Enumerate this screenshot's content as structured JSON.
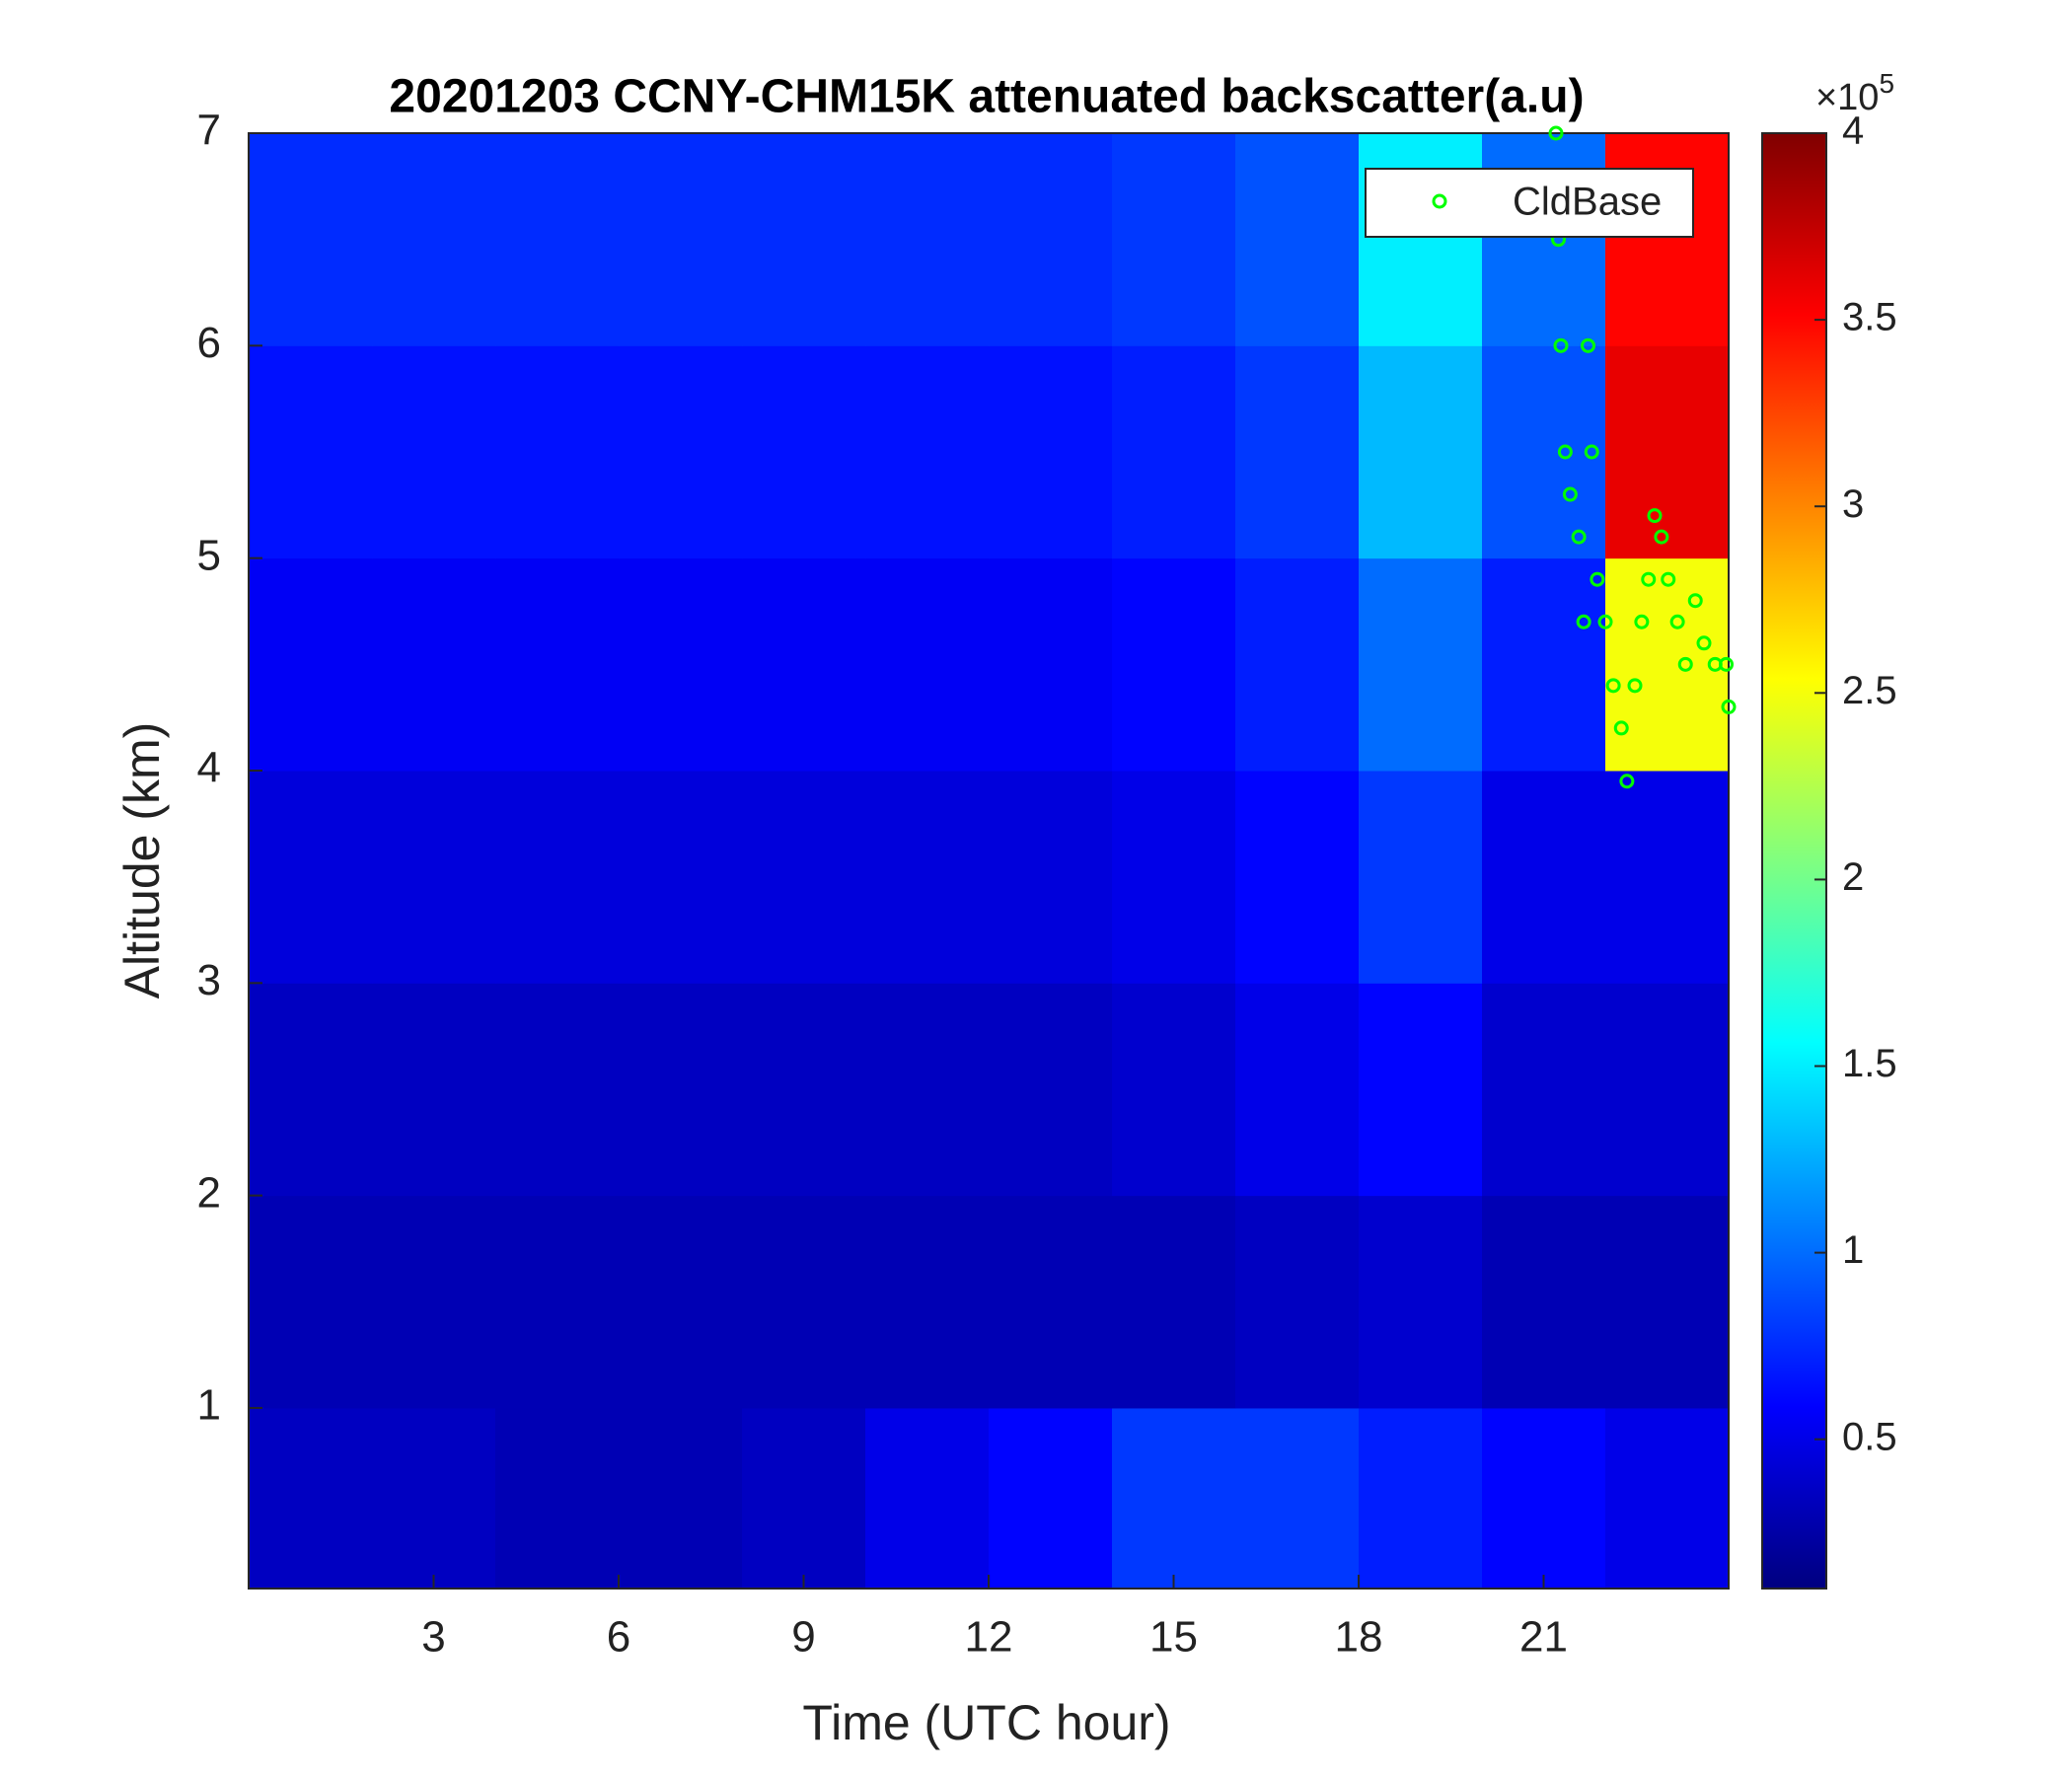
{
  "chart_data": {
    "type": "heatmap",
    "title": "20201203 CCNY-CHM15K attenuated backscatter(a.u)",
    "xlabel": "Time (UTC hour)",
    "ylabel": "Altitude (km)",
    "colormap": "jet",
    "x": [
      0,
      2,
      4,
      6,
      8,
      10,
      12,
      14,
      16,
      18,
      20,
      22,
      24
    ],
    "y": [
      0.15,
      1,
      2,
      3,
      4,
      5,
      6,
      7
    ],
    "z": [
      [
        0.35,
        0.35,
        0.3,
        0.3,
        0.35,
        0.5,
        0.6,
        0.8,
        0.8,
        0.7,
        0.6,
        0.5
      ],
      [
        0.3,
        0.3,
        0.3,
        0.3,
        0.3,
        0.3,
        0.3,
        0.3,
        0.35,
        0.4,
        0.3,
        0.3
      ],
      [
        0.35,
        0.35,
        0.35,
        0.35,
        0.35,
        0.35,
        0.35,
        0.4,
        0.5,
        0.6,
        0.4,
        0.4
      ],
      [
        0.45,
        0.45,
        0.45,
        0.45,
        0.45,
        0.45,
        0.45,
        0.5,
        0.6,
        0.8,
        0.5,
        0.5
      ],
      [
        0.55,
        0.55,
        0.55,
        0.55,
        0.55,
        0.55,
        0.55,
        0.6,
        0.7,
        1.0,
        0.7,
        2.5
      ],
      [
        0.65,
        0.65,
        0.65,
        0.65,
        0.65,
        0.65,
        0.65,
        0.7,
        0.8,
        1.3,
        0.9,
        3.6
      ],
      [
        0.75,
        0.75,
        0.75,
        0.75,
        0.75,
        0.75,
        0.75,
        0.8,
        0.9,
        1.5,
        1.0,
        3.5
      ]
    ],
    "clim": [
      0.1,
      4
    ],
    "cticks": [
      0.5,
      1,
      1.5,
      2,
      2.5,
      3,
      3.5,
      4
    ],
    "colorbar_scale": "×10",
    "colorbar_scale_exponent": "5",
    "xlim": [
      0,
      24
    ],
    "xticks": [
      3,
      6,
      9,
      12,
      15,
      18,
      21
    ],
    "ylim": [
      0.15,
      7
    ],
    "yticks": [
      1,
      2,
      3,
      4,
      5,
      6,
      7
    ],
    "legend": "upper right",
    "series": [
      {
        "name": "CldBase",
        "type": "scatter",
        "color": "#00ff00",
        "x": [
          21.2,
          21.24,
          21.28,
          21.35,
          21.43,
          21.57,
          21.65,
          21.72,
          21.78,
          21.87,
          22.0,
          22.13,
          22.26,
          22.35,
          22.48,
          22.59,
          22.7,
          22.8,
          22.91,
          23.02,
          23.17,
          23.3,
          23.46,
          23.6,
          23.78,
          23.96,
          24.0
        ],
        "values": [
          7.0,
          6.5,
          6.0,
          5.5,
          5.3,
          5.1,
          4.7,
          6.0,
          5.5,
          4.9,
          4.7,
          4.4,
          4.2,
          3.95,
          4.4,
          4.7,
          4.9,
          5.2,
          5.1,
          4.9,
          4.7,
          4.5,
          4.8,
          4.6,
          4.5,
          4.5,
          4.3
        ]
      }
    ]
  }
}
